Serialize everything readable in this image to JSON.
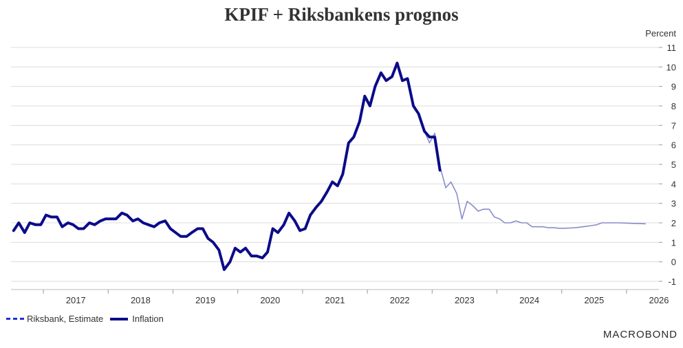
{
  "chart_data": {
    "type": "line",
    "title": "KPIF + Riksbankens prognos",
    "ylabel": "Percent",
    "ylim": [
      -1,
      11
    ],
    "yticks": [
      -1,
      0,
      1,
      2,
      3,
      4,
      5,
      6,
      7,
      8,
      9,
      10,
      11
    ],
    "xlim": [
      2016.5,
      2026.5
    ],
    "xtick_labels": [
      "2017",
      "2018",
      "2019",
      "2020",
      "2021",
      "2022",
      "2023",
      "2024",
      "2025",
      "2026"
    ],
    "grid": true,
    "legend": "bottom-left",
    "series": [
      {
        "name": "Riksbank, Estimate",
        "color": "#8a8ccc",
        "style": "line",
        "x": [
          2016.54,
          2016.62,
          2016.71,
          2016.79,
          2016.88,
          2016.96,
          2017.04,
          2017.12,
          2017.21,
          2017.29,
          2017.38,
          2017.46,
          2017.54,
          2017.62,
          2017.71,
          2017.79,
          2017.88,
          2017.96,
          2018.04,
          2018.12,
          2018.21,
          2018.29,
          2018.38,
          2018.46,
          2018.54,
          2018.62,
          2018.71,
          2018.79,
          2018.88,
          2018.96,
          2019.04,
          2019.12,
          2019.21,
          2019.29,
          2019.38,
          2019.46,
          2019.54,
          2019.62,
          2019.71,
          2019.79,
          2019.88,
          2019.96,
          2020.04,
          2020.12,
          2020.21,
          2020.29,
          2020.38,
          2020.46,
          2020.54,
          2020.62,
          2020.71,
          2020.79,
          2020.88,
          2020.96,
          2021.04,
          2021.12,
          2021.21,
          2021.29,
          2021.38,
          2021.46,
          2021.54,
          2021.62,
          2021.71,
          2021.79,
          2021.88,
          2021.96,
          2022.04,
          2022.12,
          2022.21,
          2022.29,
          2022.38,
          2022.46,
          2022.54,
          2022.62,
          2022.71,
          2022.79,
          2022.88,
          2022.96,
          2023.04,
          2023.12,
          2023.21,
          2023.29,
          2023.38,
          2023.46,
          2023.54,
          2023.62,
          2023.71,
          2023.79,
          2023.88,
          2023.96,
          2024.04,
          2024.12,
          2024.21,
          2024.29,
          2024.38,
          2024.46,
          2024.54,
          2024.62,
          2024.71,
          2024.79,
          2024.88,
          2024.96,
          2025.04,
          2025.12,
          2025.21,
          2025.29,
          2025.38,
          2025.46,
          2025.54,
          2025.62,
          2025.71,
          2025.79,
          2025.88,
          2025.96,
          2026.04,
          2026.12,
          2026.21,
          2026.29
        ],
        "values": [
          1.6,
          2.0,
          1.5,
          2.0,
          1.9,
          1.9,
          2.4,
          2.3,
          2.3,
          1.8,
          2.0,
          1.9,
          1.7,
          1.7,
          2.0,
          1.9,
          2.1,
          2.2,
          2.2,
          2.2,
          2.5,
          2.4,
          2.1,
          2.2,
          2.0,
          1.9,
          1.8,
          2.0,
          2.1,
          1.7,
          1.5,
          1.3,
          1.3,
          1.5,
          1.7,
          1.7,
          1.2,
          1.0,
          0.6,
          -0.4,
          0.0,
          0.7,
          0.5,
          0.7,
          0.3,
          0.3,
          0.2,
          0.5,
          1.7,
          1.5,
          1.9,
          2.5,
          2.1,
          1.6,
          1.7,
          2.4,
          2.8,
          3.1,
          3.6,
          4.1,
          3.9,
          4.5,
          6.1,
          6.4,
          7.2,
          8.5,
          8.0,
          9.0,
          9.7,
          9.3,
          9.5,
          10.2,
          9.3,
          9.4,
          8.0,
          7.6,
          6.7,
          6.1,
          6.6,
          4.9,
          3.8,
          4.1,
          3.5,
          2.2,
          3.1,
          2.9,
          2.6,
          2.7,
          2.7,
          2.3,
          2.2,
          2.0,
          2.0,
          2.1,
          2.0,
          2.0,
          1.8,
          1.8,
          1.8,
          1.75,
          1.75,
          1.72,
          1.72,
          1.73,
          1.75,
          1.78,
          1.82,
          1.86,
          1.9,
          2.0,
          2.0,
          2.0,
          2.0,
          1.99,
          1.98,
          1.97,
          1.96,
          1.95
        ]
      },
      {
        "name": "Inflation",
        "color": "#0b0b8a",
        "style": "line",
        "x": [
          2016.54,
          2016.62,
          2016.71,
          2016.79,
          2016.88,
          2016.96,
          2017.04,
          2017.12,
          2017.21,
          2017.29,
          2017.38,
          2017.46,
          2017.54,
          2017.62,
          2017.71,
          2017.79,
          2017.88,
          2017.96,
          2018.04,
          2018.12,
          2018.21,
          2018.29,
          2018.38,
          2018.46,
          2018.54,
          2018.62,
          2018.71,
          2018.79,
          2018.88,
          2018.96,
          2019.04,
          2019.12,
          2019.21,
          2019.29,
          2019.38,
          2019.46,
          2019.54,
          2019.62,
          2019.71,
          2019.79,
          2019.88,
          2019.96,
          2020.04,
          2020.12,
          2020.21,
          2020.29,
          2020.38,
          2020.46,
          2020.54,
          2020.62,
          2020.71,
          2020.79,
          2020.88,
          2020.96,
          2021.04,
          2021.12,
          2021.21,
          2021.29,
          2021.38,
          2021.46,
          2021.54,
          2021.62,
          2021.71,
          2021.79,
          2021.88,
          2021.96,
          2022.04,
          2022.12,
          2022.21,
          2022.29,
          2022.38,
          2022.46,
          2022.54,
          2022.62,
          2022.71,
          2022.79,
          2022.88,
          2022.96,
          2023.04,
          2023.12
        ],
        "values": [
          1.6,
          2.0,
          1.5,
          2.0,
          1.9,
          1.9,
          2.4,
          2.3,
          2.3,
          1.8,
          2.0,
          1.9,
          1.7,
          1.7,
          2.0,
          1.9,
          2.1,
          2.2,
          2.2,
          2.2,
          2.5,
          2.4,
          2.1,
          2.2,
          2.0,
          1.9,
          1.8,
          2.0,
          2.1,
          1.7,
          1.5,
          1.3,
          1.3,
          1.5,
          1.7,
          1.7,
          1.2,
          1.0,
          0.6,
          -0.4,
          0.0,
          0.7,
          0.5,
          0.7,
          0.3,
          0.3,
          0.2,
          0.5,
          1.7,
          1.5,
          1.9,
          2.5,
          2.1,
          1.6,
          1.7,
          2.4,
          2.8,
          3.1,
          3.6,
          4.1,
          3.9,
          4.5,
          6.1,
          6.4,
          7.2,
          8.5,
          8.0,
          9.0,
          9.7,
          9.3,
          9.5,
          10.2,
          9.3,
          9.4,
          8.0,
          7.6,
          6.7,
          6.4,
          6.4,
          4.7
        ]
      }
    ]
  },
  "legend": {
    "estimate_label": "Riksbank, Estimate",
    "inflation_label": "Inflation"
  },
  "brand": "MACROBOND"
}
